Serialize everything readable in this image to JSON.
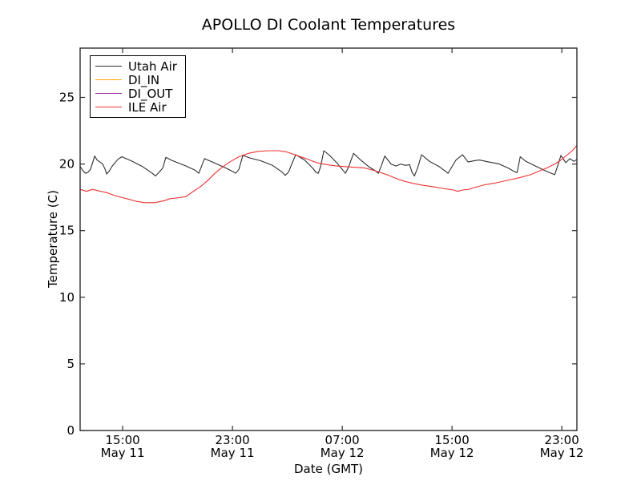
{
  "chart_data": {
    "type": "line",
    "title": "APOLLO DI Coolant Temperatures",
    "xlabel": "Date (GMT)",
    "ylabel": "Temperature (C)",
    "x_unit": "hours since May 11 00:00 GMT",
    "xlim": [
      11.9,
      48.1
    ],
    "ylim": [
      0,
      28.7
    ],
    "grid": false,
    "legend_position": "upper left",
    "xticks": {
      "hours": [
        15,
        23,
        31,
        39,
        47
      ],
      "time_labels": [
        "15:00",
        "23:00",
        "07:00",
        "15:00",
        "23:00"
      ],
      "date_labels": [
        "May 11",
        "May 11",
        "May 12",
        "May 12",
        "May 12"
      ]
    },
    "yticks": [
      0,
      5,
      10,
      15,
      20,
      25
    ],
    "series": [
      {
        "name": "Utah Air",
        "color": "#2e2e2e",
        "opacity": 1,
        "points": [
          [
            11.91,
            19.8
          ],
          [
            12.14,
            19.45
          ],
          [
            12.31,
            19.3
          ],
          [
            12.49,
            19.4
          ],
          [
            12.66,
            19.6
          ],
          [
            12.96,
            20.6
          ],
          [
            13.13,
            20.3
          ],
          [
            13.54,
            20.0
          ],
          [
            13.72,
            19.6
          ],
          [
            13.83,
            19.25
          ],
          [
            14.01,
            19.45
          ],
          [
            14.24,
            19.85
          ],
          [
            14.65,
            20.35
          ],
          [
            14.94,
            20.55
          ],
          [
            15.7,
            20.2
          ],
          [
            16.46,
            19.8
          ],
          [
            17.16,
            19.3
          ],
          [
            17.39,
            19.1
          ],
          [
            17.63,
            19.35
          ],
          [
            17.92,
            19.7
          ],
          [
            18.15,
            20.5
          ],
          [
            18.62,
            20.25
          ],
          [
            19.5,
            19.9
          ],
          [
            20.26,
            19.55
          ],
          [
            20.55,
            19.3
          ],
          [
            20.96,
            20.4
          ],
          [
            21.54,
            20.15
          ],
          [
            22.42,
            19.75
          ],
          [
            23.0,
            19.45
          ],
          [
            23.23,
            19.3
          ],
          [
            23.47,
            19.6
          ],
          [
            23.76,
            20.65
          ],
          [
            24.28,
            20.45
          ],
          [
            25.04,
            20.25
          ],
          [
            25.92,
            19.9
          ],
          [
            26.62,
            19.4
          ],
          [
            26.85,
            19.15
          ],
          [
            27.09,
            19.4
          ],
          [
            27.32,
            20.0
          ],
          [
            27.61,
            20.7
          ],
          [
            28.26,
            20.3
          ],
          [
            28.84,
            19.7
          ],
          [
            29.07,
            19.4
          ],
          [
            29.25,
            19.3
          ],
          [
            29.42,
            19.8
          ],
          [
            29.66,
            21.0
          ],
          [
            30.12,
            20.6
          ],
          [
            30.59,
            20.1
          ],
          [
            31.0,
            19.6
          ],
          [
            31.23,
            19.3
          ],
          [
            31.47,
            19.8
          ],
          [
            31.82,
            20.8
          ],
          [
            32.34,
            20.3
          ],
          [
            32.93,
            19.8
          ],
          [
            33.4,
            19.5
          ],
          [
            33.63,
            19.3
          ],
          [
            33.86,
            19.9
          ],
          [
            34.1,
            20.6
          ],
          [
            34.56,
            20.0
          ],
          [
            34.91,
            19.85
          ],
          [
            35.26,
            20.0
          ],
          [
            35.61,
            19.9
          ],
          [
            35.91,
            19.95
          ],
          [
            36.08,
            19.4
          ],
          [
            36.26,
            19.1
          ],
          [
            36.49,
            19.7
          ],
          [
            36.78,
            20.7
          ],
          [
            37.36,
            20.2
          ],
          [
            38.07,
            19.8
          ],
          [
            38.47,
            19.5
          ],
          [
            38.71,
            19.3
          ],
          [
            39.0,
            19.8
          ],
          [
            39.29,
            20.3
          ],
          [
            39.76,
            20.7
          ],
          [
            40.17,
            20.15
          ],
          [
            40.64,
            20.25
          ],
          [
            40.99,
            20.3
          ],
          [
            41.69,
            20.15
          ],
          [
            42.45,
            20.0
          ],
          [
            43.09,
            19.7
          ],
          [
            43.5,
            19.45
          ],
          [
            43.74,
            19.35
          ],
          [
            43.97,
            20.55
          ],
          [
            44.38,
            20.2
          ],
          [
            45.08,
            19.85
          ],
          [
            45.78,
            19.5
          ],
          [
            46.25,
            19.3
          ],
          [
            46.48,
            19.2
          ],
          [
            46.71,
            19.9
          ],
          [
            46.94,
            20.65
          ],
          [
            47.29,
            20.1
          ],
          [
            47.59,
            20.4
          ],
          [
            47.88,
            20.2
          ],
          [
            48.11,
            20.35
          ]
        ]
      },
      {
        "name": "DI_IN",
        "color": "#ffa500",
        "opacity": 1,
        "points": [
          [
            11.91,
            0
          ],
          [
            48.11,
            0
          ]
        ]
      },
      {
        "name": "DI_OUT",
        "color": "#993299",
        "opacity": 0.85,
        "points": [
          [
            11.91,
            0
          ],
          [
            48.11,
            0
          ]
        ]
      },
      {
        "name": "ILE Air",
        "color": "#ee3333",
        "opacity": 1,
        "points": [
          [
            11.91,
            18.1
          ],
          [
            12.37,
            17.95
          ],
          [
            12.78,
            18.1
          ],
          [
            13.19,
            18.0
          ],
          [
            13.83,
            17.85
          ],
          [
            14.53,
            17.6
          ],
          [
            15.29,
            17.4
          ],
          [
            15.99,
            17.2
          ],
          [
            16.58,
            17.1
          ],
          [
            17.34,
            17.1
          ],
          [
            18.04,
            17.25
          ],
          [
            18.45,
            17.4
          ],
          [
            18.91,
            17.45
          ],
          [
            19.61,
            17.55
          ],
          [
            20.08,
            17.9
          ],
          [
            20.66,
            18.3
          ],
          [
            21.13,
            18.7
          ],
          [
            21.72,
            19.3
          ],
          [
            22.3,
            19.8
          ],
          [
            22.88,
            20.2
          ],
          [
            23.47,
            20.55
          ],
          [
            24.17,
            20.8
          ],
          [
            24.87,
            20.95
          ],
          [
            25.63,
            21.0
          ],
          [
            26.39,
            21.0
          ],
          [
            26.97,
            20.9
          ],
          [
            27.67,
            20.65
          ],
          [
            28.37,
            20.4
          ],
          [
            29.13,
            20.1
          ],
          [
            29.89,
            19.95
          ],
          [
            30.59,
            19.85
          ],
          [
            31.29,
            19.8
          ],
          [
            32.05,
            19.75
          ],
          [
            32.64,
            19.7
          ],
          [
            33.22,
            19.55
          ],
          [
            33.81,
            19.35
          ],
          [
            34.39,
            19.15
          ],
          [
            34.97,
            18.9
          ],
          [
            35.56,
            18.7
          ],
          [
            36.14,
            18.55
          ],
          [
            36.9,
            18.4
          ],
          [
            37.6,
            18.3
          ],
          [
            38.18,
            18.2
          ],
          [
            38.77,
            18.1
          ],
          [
            39.12,
            18.05
          ],
          [
            39.41,
            17.95
          ],
          [
            39.76,
            18.05
          ],
          [
            40.23,
            18.1
          ],
          [
            40.52,
            18.2
          ],
          [
            41.4,
            18.45
          ],
          [
            42.27,
            18.6
          ],
          [
            43.15,
            18.8
          ],
          [
            44.02,
            19.0
          ],
          [
            44.73,
            19.2
          ],
          [
            45.31,
            19.45
          ],
          [
            45.89,
            19.7
          ],
          [
            46.48,
            20.0
          ],
          [
            46.94,
            20.3
          ],
          [
            47.41,
            20.7
          ],
          [
            47.76,
            21.0
          ],
          [
            48.11,
            21.4
          ]
        ]
      }
    ],
    "frame_color": "#2e2e2e",
    "text_color": "#000000"
  }
}
